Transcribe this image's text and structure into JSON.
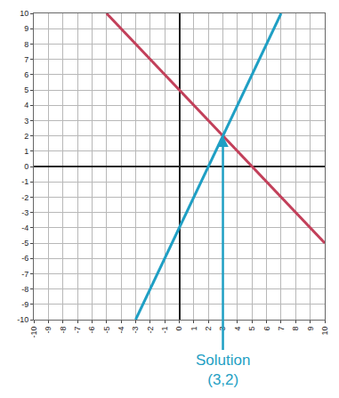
{
  "chart_data": {
    "type": "line",
    "xlim": [
      -10,
      10
    ],
    "ylim": [
      -10,
      10
    ],
    "xticks": [
      -10,
      -9,
      -8,
      -7,
      -6,
      -5,
      -4,
      -3,
      -2,
      -1,
      0,
      1,
      2,
      3,
      4,
      5,
      6,
      7,
      8,
      9,
      10
    ],
    "yticks": [
      -10,
      -9,
      -8,
      -7,
      -6,
      -5,
      -4,
      -3,
      -2,
      -1,
      0,
      1,
      2,
      3,
      4,
      5,
      6,
      7,
      8,
      9,
      10
    ],
    "grid": true,
    "series": [
      {
        "color": "#c2405a",
        "x": [
          -5,
          0,
          3,
          10
        ],
        "values": [
          10,
          5,
          2,
          -5
        ]
      },
      {
        "color": "#1f9fc4",
        "x": [
          -3,
          0,
          3,
          7
        ],
        "values": [
          -10,
          -4,
          2,
          10
        ]
      }
    ],
    "annotations": [
      {
        "text": "Solution\n(3,2)",
        "x": 3,
        "y": 2,
        "color": "#1f9fc4"
      }
    ]
  }
}
